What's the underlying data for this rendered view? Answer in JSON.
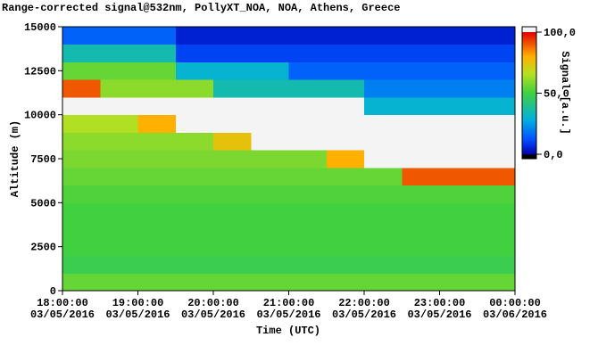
{
  "chart_data": {
    "type": "heatmap",
    "title": "Range-corrected signal@532nm, PollyXT_NOA, NOA, Athens, Greece",
    "xlabel": "Time (UTC)",
    "ylabel": "Altitude (m)",
    "x": [
      18,
      18.5,
      19,
      19.5,
      20,
      20.5,
      21,
      21.5,
      22,
      22.5,
      23,
      23.5
    ],
    "y": [
      0,
      1000,
      2000,
      3000,
      4000,
      5000,
      6000,
      7000,
      8000,
      9000,
      10000,
      11000,
      12000,
      13000,
      14000
    ],
    "values": [
      [
        55,
        55,
        55,
        55,
        55,
        55,
        55,
        55,
        55,
        55,
        55,
        55
      ],
      [
        48,
        48,
        48,
        48,
        48,
        48,
        48,
        48,
        48,
        48,
        48,
        48
      ],
      [
        50,
        50,
        50,
        50,
        50,
        50,
        50,
        50,
        50,
        50,
        50,
        50
      ],
      [
        50,
        50,
        50,
        50,
        50,
        50,
        50,
        50,
        50,
        50,
        50,
        50
      ],
      [
        50,
        50,
        50,
        50,
        50,
        50,
        50,
        50,
        50,
        50,
        50,
        50
      ],
      [
        52,
        52,
        52,
        52,
        52,
        52,
        52,
        52,
        52,
        52,
        52,
        52
      ],
      [
        55,
        55,
        55,
        55,
        55,
        55,
        55,
        55,
        55,
        90,
        90,
        90
      ],
      [
        58,
        58,
        58,
        58,
        58,
        58,
        58,
        80,
        120,
        120,
        120,
        120
      ],
      [
        60,
        60,
        60,
        60,
        75,
        110,
        110,
        120,
        120,
        120,
        120,
        120
      ],
      [
        65,
        65,
        80,
        120,
        120,
        120,
        120,
        120,
        120,
        120,
        120,
        120
      ],
      [
        120,
        110,
        110,
        110,
        110,
        110,
        110,
        110,
        30,
        30,
        30,
        30
      ],
      [
        90,
        60,
        60,
        60,
        35,
        35,
        35,
        35,
        20,
        20,
        20,
        20
      ],
      [
        55,
        55,
        55,
        30,
        30,
        30,
        15,
        15,
        15,
        15,
        15,
        15
      ],
      [
        35,
        35,
        35,
        10,
        10,
        10,
        10,
        10,
        10,
        10,
        10,
        10
      ],
      [
        15,
        15,
        15,
        5,
        5,
        5,
        5,
        5,
        5,
        5,
        5,
        5
      ]
    ],
    "xlim": [
      18,
      24
    ],
    "xticks": [
      {
        "value": 18,
        "label": "18:00:00\n03/05/2016"
      },
      {
        "value": 19,
        "label": "19:00:00\n03/05/2016"
      },
      {
        "value": 20,
        "label": "20:00:00\n03/05/2016"
      },
      {
        "value": 21,
        "label": "21:00:00\n03/05/2016"
      },
      {
        "value": 22,
        "label": "22:00:00\n03/05/2016"
      },
      {
        "value": 23,
        "label": "23:00:00\n03/05/2016"
      },
      {
        "value": 24,
        "label": "00:00:00\n03/06/2016"
      }
    ],
    "ylim": [
      0,
      15000
    ],
    "yticks": [
      0,
      2500,
      5000,
      7500,
      10000,
      12500,
      15000
    ],
    "colorbar": {
      "label": "Signal [a.u.]",
      "lim": [
        0,
        100
      ],
      "ticks": [
        {
          "value": 0,
          "label": "0,0"
        },
        {
          "value": 50,
          "label": "50,0"
        },
        {
          "value": 100,
          "label": "100,0"
        }
      ]
    }
  }
}
